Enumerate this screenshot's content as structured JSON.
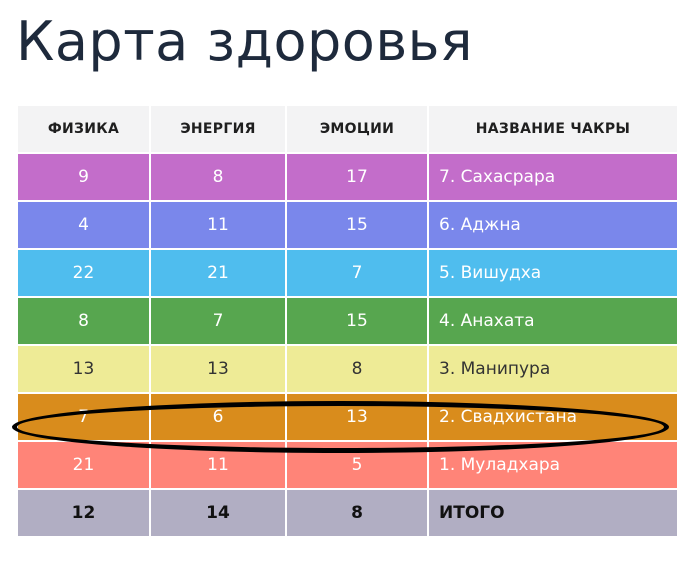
{
  "title": "Карта здоровья",
  "headers": [
    "ФИЗИКА",
    "ЭНЕРГИЯ",
    "ЭМОЦИИ",
    "НАЗВАНИЕ ЧАКРЫ"
  ],
  "rows": [
    {
      "physics": "9",
      "energy": "8",
      "emotions": "17",
      "name": "7. Сахасрара",
      "color": "#c36dca",
      "text_color": "#ffffff"
    },
    {
      "physics": "4",
      "energy": "11",
      "emotions": "15",
      "name": "6. Аджна",
      "color": "#7a87eb",
      "text_color": "#ffffff"
    },
    {
      "physics": "22",
      "energy": "21",
      "emotions": "7",
      "name": "5. Вишудха",
      "color": "#4fbdee",
      "text_color": "#ffffff"
    },
    {
      "physics": "8",
      "energy": "7",
      "emotions": "15",
      "name": "4. Анахата",
      "color": "#57a64f",
      "text_color": "#ffffff"
    },
    {
      "physics": "13",
      "energy": "13",
      "emotions": "8",
      "name": "3. Манипура",
      "color": "#eeeb96",
      "text_color": "#333333"
    },
    {
      "physics": "7",
      "energy": "6",
      "emotions": "13",
      "name": "2. Свадхистана",
      "color": "#d98c1c",
      "text_color": "#ffffff"
    },
    {
      "physics": "21",
      "energy": "11",
      "emotions": "5",
      "name": "1. Муладхара",
      "color": "#ff8478",
      "text_color": "#ffffff"
    }
  ],
  "total": {
    "physics": "12",
    "energy": "14",
    "emotions": "8",
    "name": "ИТОГО",
    "color": "#b1aec3",
    "text_color": "#111111"
  },
  "highlighted_row": "2. Свадхистана"
}
